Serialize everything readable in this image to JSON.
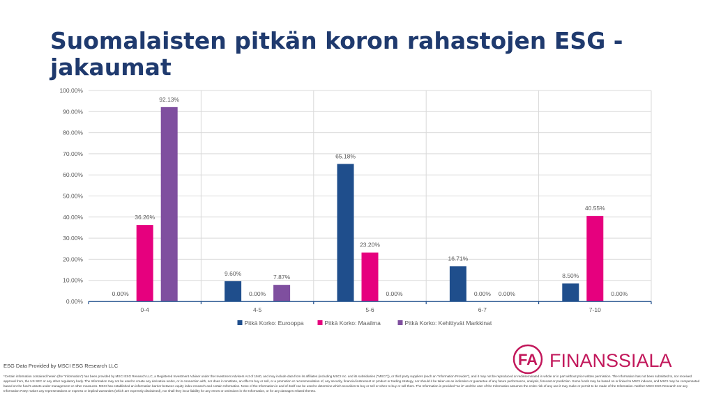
{
  "page_title": "Suomalaisten pitkän koron rahastojen ESG -jakaumat",
  "source_note": "ESG Data Provided by MSCI ESG Research LLC",
  "disclaimer": "*Certain information contained herein (the \"Information\") has been provided by MSCI ESG Research LLC, a Registered Investment Adviser under the Investment Advisers Act of 1940, and may include data from its affiliates (including MSCI Inc. and its subsidiaries (\"MSCI\")), or third party suppliers (each an \"Information Provider\"), and it may not be reproduced or redisseminated in whole or in part without prior written permission. The Information has not been submitted to, nor received approval from, the US SEC or any other regulatory body. The Information may not be used to create any derivative works, or in connection with, nor does it constitute, an offer to buy or sell, or a promotion or recommendation of, any security, financial instrument or product or trading strategy, nor should it be taken as an indication or guarantee of any future performance, analysis, forecast or prediction. Some funds may be based on or linked to MSCI indexes, and MSCI may be compensated based on the fund's assets under management or other measures. MSCI has established an information barrier between equity index research and certain Information. None of the Information in and of itself can be used to determine which securities to buy or sell or when to buy or sell them. The Information is provided \"as is\" and the user of the Information assumes the entire risk of any use it may make or permit to be made of the Information. Neither MSCI ESG Research nor any Information Party makes any representations or express or implied warranties (which are expressly disclaimed), nor shall they incur liability for any errors or omissions in the Information, or for any damages related thereto.",
  "logo": {
    "monogram": "FA",
    "wordmark": "FINANSSIALA",
    "color": "#c2185b"
  },
  "chart_data": {
    "type": "bar",
    "title": "",
    "xlabel": "",
    "ylabel": "",
    "categories": [
      "0-4",
      "4-5",
      "5-6",
      "6-7",
      "7-10"
    ],
    "ylim": [
      0,
      100
    ],
    "ytick_step": 10,
    "ytick_labels": [
      "0.00%",
      "10.00%",
      "20.00%",
      "30.00%",
      "40.00%",
      "50.00%",
      "60.00%",
      "70.00%",
      "80.00%",
      "90.00%",
      "100.00%"
    ],
    "grid": true,
    "legend_position": "bottom",
    "series": [
      {
        "name": "Pitkä Korko: Eurooppa",
        "color": "#1f4e8c",
        "values": [
          0.0,
          9.6,
          65.18,
          16.71,
          8.5
        ],
        "labels": [
          "0.00%",
          "9.60%",
          "65.18%",
          "16.71%",
          "8.50%"
        ]
      },
      {
        "name": "Pitkä Korko: Maailma",
        "color": "#e6007e",
        "values": [
          36.26,
          0.0,
          23.2,
          0.0,
          40.55
        ],
        "labels": [
          "36.26%",
          "0.00%",
          "23.20%",
          "0.00%",
          "40.55%"
        ]
      },
      {
        "name": "Pitkä Korko: Kehittyvät Markkinat",
        "color": "#7f4f9f",
        "values": [
          92.13,
          7.87,
          0.0,
          0.0,
          0.0
        ],
        "labels": [
          "92.13%",
          "7.87%",
          "0.00%",
          "0.00%",
          "0.00%"
        ]
      }
    ]
  }
}
